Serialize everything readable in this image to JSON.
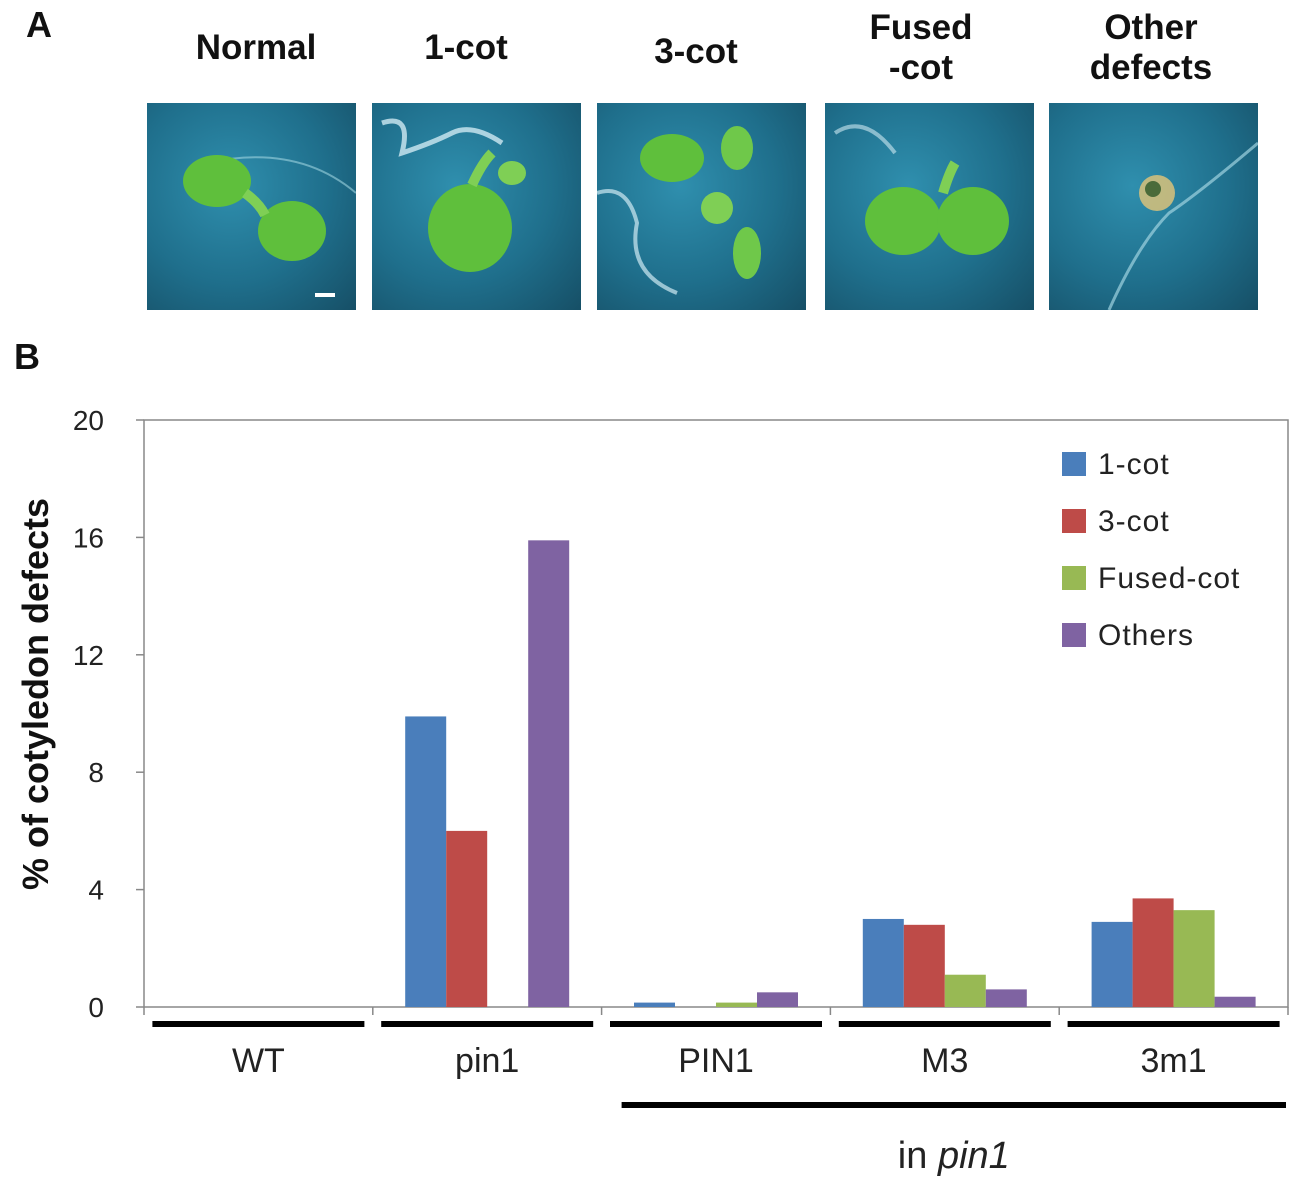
{
  "panel_a": {
    "letter": "A",
    "photos": [
      {
        "title": "Normal"
      },
      {
        "title": "1-cot"
      },
      {
        "title": "3-cot"
      },
      {
        "title": "Fused\n-cot"
      },
      {
        "title": "Other\ndefects"
      }
    ]
  },
  "colors": {
    "series": [
      "#4a7ebb",
      "#be4b48",
      "#98b954",
      "#7f63a2"
    ],
    "photo_bg": "#1f6f8c",
    "seedling": "#5fbf3c"
  },
  "chart_data": {
    "type": "bar",
    "panel_letter": "B",
    "title": "",
    "xlabel": "",
    "ylabel": "% of cotyledon defects",
    "ylim": [
      0,
      20
    ],
    "yticks": [
      0,
      4,
      8,
      12,
      16,
      20
    ],
    "grid": false,
    "legend_position": "top-right",
    "categories": [
      "WT",
      "pin1",
      "PIN1",
      "M3",
      "3m1"
    ],
    "series": [
      {
        "name": "1-cot",
        "values": [
          0,
          9.9,
          0.15,
          3.0,
          2.9
        ]
      },
      {
        "name": "3-cot",
        "values": [
          0,
          6.0,
          0,
          2.8,
          3.7
        ]
      },
      {
        "name": "Fused-cot",
        "values": [
          0,
          0,
          0.15,
          1.1,
          3.3
        ]
      },
      {
        "name": "Others",
        "values": [
          0,
          15.9,
          0.5,
          0.6,
          0.35
        ]
      }
    ],
    "group_annotation": {
      "prefix": "in ",
      "italic": "pin1"
    }
  }
}
